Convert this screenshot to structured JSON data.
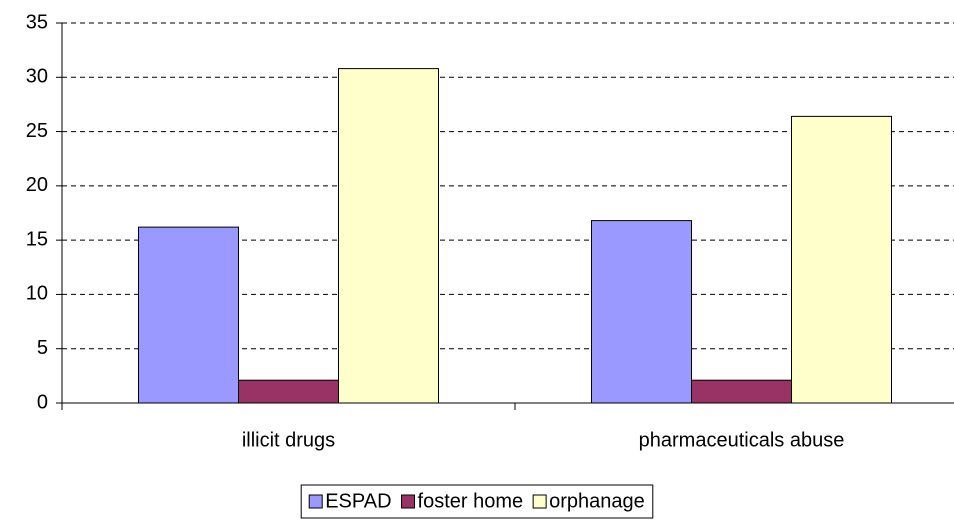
{
  "chart_data": {
    "type": "bar",
    "categories": [
      "illicit drugs",
      "pharmaceuticals abuse"
    ],
    "series": [
      {
        "name": "ESPAD",
        "color": "#9999ff",
        "values": [
          16.2,
          16.8
        ]
      },
      {
        "name": "foster home",
        "color": "#993366",
        "values": [
          2.1,
          2.1
        ]
      },
      {
        "name": "orphanage",
        "color": "#ffffcc",
        "values": [
          30.8,
          26.4
        ]
      }
    ],
    "ylim": [
      0,
      35
    ],
    "yticks": [
      0,
      5,
      10,
      15,
      20,
      25,
      30,
      35
    ],
    "grid": true,
    "legend": "bottom"
  }
}
